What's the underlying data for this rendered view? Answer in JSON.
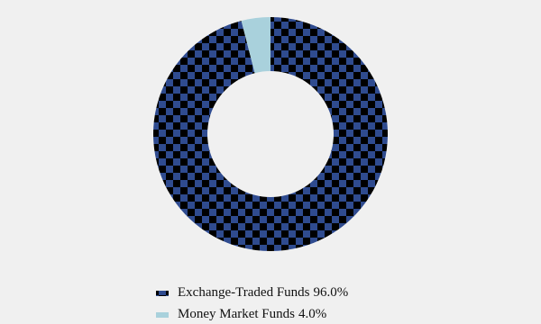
{
  "chart_data": {
    "type": "donut",
    "categories": [
      "Exchange-Traded Funds",
      "Money Market Funds"
    ],
    "values": [
      96,
      4
    ],
    "value_labels": [
      "96.0%",
      "4.0%"
    ],
    "colors": [
      "#2f4b8f",
      "#a9d1dc"
    ],
    "patterns": [
      "checkerboard",
      "none"
    ]
  }
}
